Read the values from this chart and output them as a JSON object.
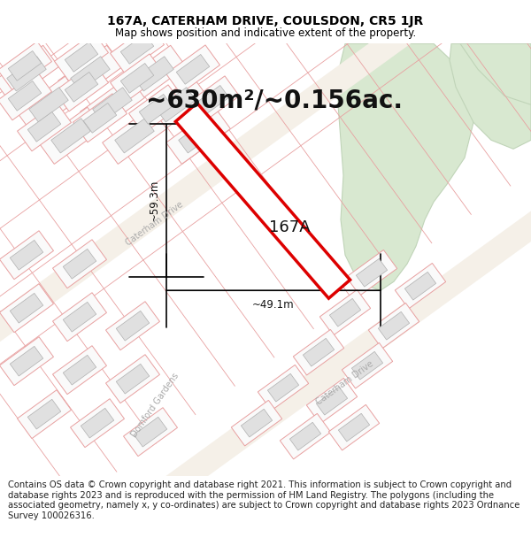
{
  "title_line1": "167A, CATERHAM DRIVE, COULSDON, CR5 1JR",
  "title_line2": "Map shows position and indicative extent of the property.",
  "area_text": "~630m²/~0.156ac.",
  "dim_vertical": "~59.3m",
  "dim_horizontal": "~49.1m",
  "label_property": "167A",
  "street_caterham_upper": "Caterham Drive",
  "street_caterham_lower": "Caterham Drive",
  "street_domford": "Domford Gardens",
  "footer_text": "Contains OS data © Crown copyright and database right 2021. This information is subject to Crown copyright and database rights 2023 and is reproduced with the permission of HM Land Registry. The polygons (including the associated geometry, namely x, y co-ordinates) are subject to Crown copyright and database rights 2023 Ordnance Survey 100026316.",
  "map_bg": "#ffffff",
  "plot_outline_color": "#e8a0a0",
  "building_fill": "#e0e0e0",
  "building_edge": "#b0b0b0",
  "highlight_fill": "#ffffff",
  "highlight_edge": "#dd0000",
  "green_fill": "#d8e8d0",
  "green_edge": "#c0d4b8",
  "road_fill": "#f8f4ec",
  "title_fs": 10,
  "subtitle_fs": 8.5,
  "area_fs": 20,
  "dim_fs": 8.5,
  "prop_label_fs": 13,
  "street_fs": 7,
  "footer_fs": 7.2
}
